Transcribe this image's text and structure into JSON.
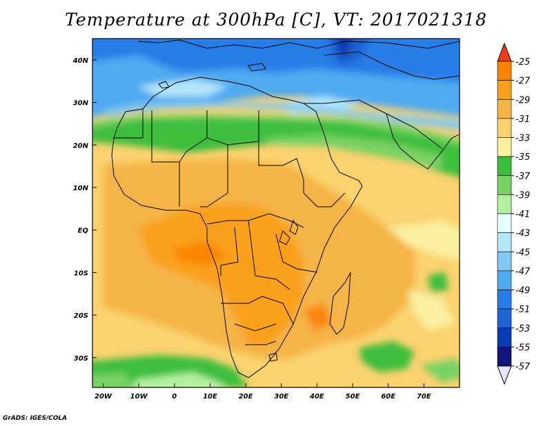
{
  "title": "Temperature at 300hPa [C], VT: 2017021318",
  "credit": "GrADS: IGES/COLA",
  "map": {
    "lon_range": [
      -23,
      80
    ],
    "lat_range": [
      -37,
      45
    ],
    "lat_ticks": [
      {
        "value": 40,
        "label": "40N"
      },
      {
        "value": 30,
        "label": "30N"
      },
      {
        "value": 20,
        "label": "20N"
      },
      {
        "value": 10,
        "label": "10N"
      },
      {
        "value": 0,
        "label": "EQ"
      },
      {
        "value": -10,
        "label": "10S"
      },
      {
        "value": -20,
        "label": "20S"
      },
      {
        "value": -30,
        "label": "30S"
      }
    ],
    "lon_ticks": [
      {
        "value": -20,
        "label": "20W"
      },
      {
        "value": -10,
        "label": "10W"
      },
      {
        "value": 0,
        "label": "0"
      },
      {
        "value": 10,
        "label": "10E"
      },
      {
        "value": 20,
        "label": "20E"
      },
      {
        "value": 30,
        "label": "30E"
      },
      {
        "value": 40,
        "label": "40E"
      },
      {
        "value": 50,
        "label": "50E"
      },
      {
        "value": 60,
        "label": "60E"
      },
      {
        "value": 70,
        "label": "70E"
      }
    ]
  },
  "colorbar": {
    "levels": [
      -25,
      -27,
      -29,
      -31,
      -33,
      -35,
      -37,
      -39,
      -41,
      -43,
      -45,
      -47,
      -49,
      -51,
      -53,
      -55,
      -57
    ],
    "colors": [
      "#f03c14",
      "#fa8200",
      "#faa01e",
      "#f5b446",
      "#fad26e",
      "#faf0a0",
      "#3cbe3c",
      "#78d264",
      "#b4f0a0",
      "#e6ffff",
      "#b4e6fa",
      "#82c8f0",
      "#50aaf0",
      "#287de6",
      "#1e64d2",
      "#0a3cb4",
      "#14147d",
      "#e6e6fa"
    ]
  }
}
